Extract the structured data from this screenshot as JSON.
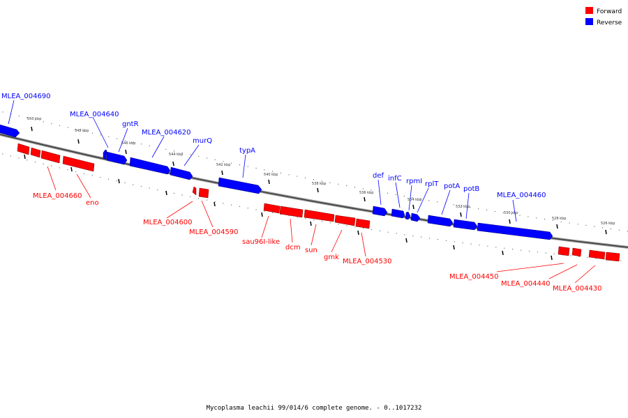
{
  "caption": "Mycoplasma leachii 99/014/6 complete genome. - 0..1017232",
  "legend": [
    {
      "label": "Forward",
      "color": "#ff0000"
    },
    {
      "label": "Reverse",
      "color": "#0000ff"
    }
  ],
  "ticks": [
    "550 kbp",
    "548 kbp",
    "546 kbp",
    "544 kbp",
    "542 kbp",
    "540 kbp",
    "538 kbp",
    "536 kbp",
    "534 kbp",
    "532 kbp",
    "530 kbp",
    "528 kbp",
    "526 kbp"
  ],
  "reverse_labels": [
    "MLEA_004690",
    "MLEA_004640",
    "gntR",
    "MLEA_004620",
    "murQ",
    "typA",
    "def",
    "infC",
    "rpmI",
    "rplT",
    "potA",
    "potB",
    "MLEA_004460"
  ],
  "forward_labels": [
    "MLEA_004660",
    "eno",
    "MLEA_004600",
    "MLEA_004590",
    "sau96I-like",
    "dcm",
    "sun",
    "gmk",
    "MLEA_004530",
    "MLEA_004450",
    "MLEA_004440",
    "MLEA_004430"
  ]
}
